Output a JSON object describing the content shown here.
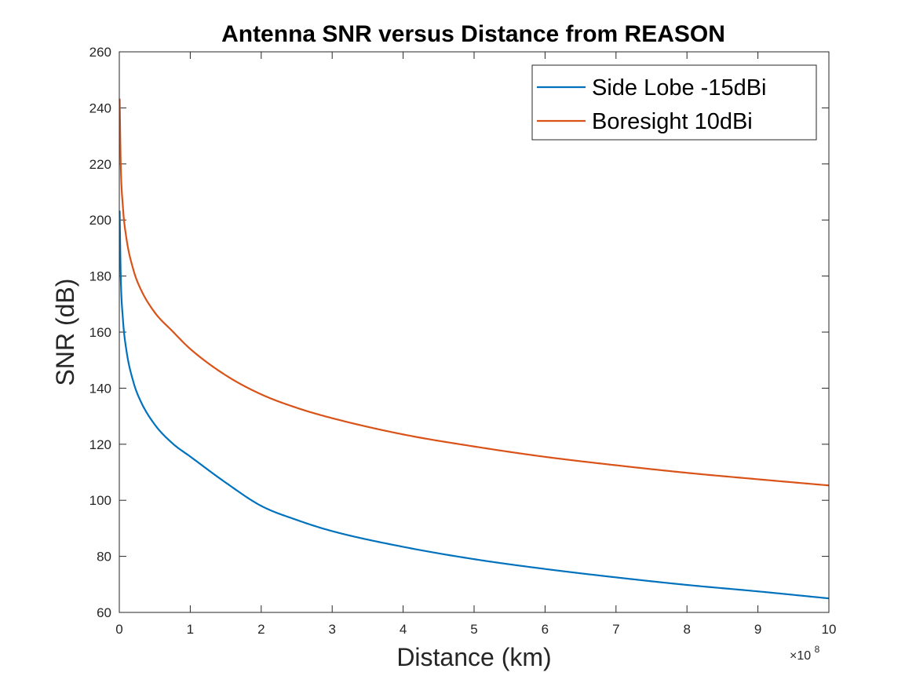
{
  "chart_data": {
    "type": "line",
    "title": "Antenna SNR versus Distance from REASON",
    "xlabel": "Distance (km)",
    "ylabel": "SNR (dB)",
    "x_exponent_label": {
      "base": "×10",
      "exp": "8"
    },
    "xlim": [
      0,
      10
    ],
    "ylim": [
      60,
      260
    ],
    "xticks": [
      0,
      1,
      2,
      3,
      4,
      5,
      6,
      7,
      8,
      9,
      10
    ],
    "yticks": [
      60,
      80,
      100,
      120,
      140,
      160,
      180,
      200,
      220,
      240,
      260
    ],
    "grid": false,
    "legend_position": "top-right",
    "series": [
      {
        "name": "Side Lobe -15dBi",
        "color": "#0072BD",
        "x": [
          0.005,
          0.02,
          0.05,
          0.1,
          0.2,
          0.3,
          0.5,
          0.75,
          1,
          1.5,
          2,
          2.5,
          3,
          4,
          5,
          6,
          7,
          8,
          9,
          10
        ],
        "y": [
          203.3,
          180.3,
          164.9,
          153.5,
          142.1,
          135.4,
          127.0,
          120.3,
          115.6,
          106.3,
          98.0,
          93.0,
          89.0,
          83.4,
          79.0,
          75.5,
          72.5,
          69.8,
          67.5,
          65.0
        ]
      },
      {
        "name": "Boresight 10dBi",
        "color": "#D95319",
        "x": [
          0.005,
          0.02,
          0.05,
          0.1,
          0.2,
          0.3,
          0.5,
          0.75,
          1,
          1.5,
          2,
          2.5,
          3,
          4,
          5,
          6,
          7,
          8,
          9,
          10
        ],
        "y": [
          243.3,
          220.3,
          204.9,
          193.5,
          182.1,
          175.4,
          167.0,
          160.3,
          154.0,
          144.6,
          137.8,
          133.0,
          129.3,
          123.5,
          119.2,
          115.5,
          112.5,
          109.8,
          107.5,
          105.3
        ]
      }
    ]
  }
}
